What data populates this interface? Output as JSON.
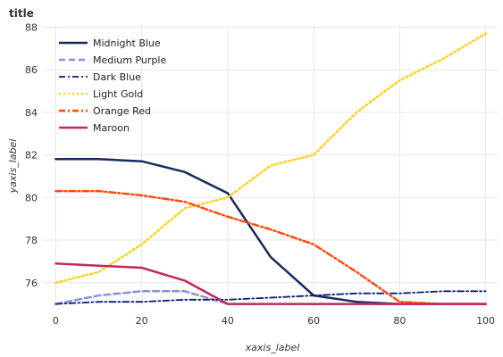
{
  "chart_data": {
    "type": "line",
    "title": "title",
    "xlabel": "xaxis_label",
    "ylabel": "yaxis_label",
    "xlim": [
      -3,
      103
    ],
    "ylim": [
      74.9,
      88.1
    ],
    "xticks": [
      0,
      20,
      40,
      60,
      80,
      100
    ],
    "yticks": [
      76,
      78,
      80,
      82,
      84,
      86,
      88
    ],
    "grid": true,
    "legend_position": "top-left",
    "series": [
      {
        "name": "Midnight Blue",
        "color": "#1a2a5e",
        "dash": "solid",
        "width": 2.5,
        "x": [
          0,
          10,
          20,
          30,
          40,
          50,
          60,
          70,
          80,
          90,
          100
        ],
        "y": [
          81.8,
          81.8,
          81.7,
          81.2,
          80.2,
          77.2,
          75.4,
          75.1,
          75.0,
          75.0,
          75.0
        ]
      },
      {
        "name": "Medium Purple",
        "color": "#8e8ed8",
        "dash": "dash",
        "width": 2.5,
        "x": [
          0,
          10,
          20,
          30,
          40,
          50,
          60,
          70,
          80,
          90,
          100
        ],
        "y": [
          75.0,
          75.4,
          75.6,
          75.6,
          75.0,
          75.0,
          75.0,
          75.0,
          75.0,
          75.0,
          75.0
        ]
      },
      {
        "name": "Dark Blue",
        "color": "#0d1c7a",
        "dash": "dashdot",
        "width": 1.8,
        "x": [
          0,
          10,
          20,
          30,
          40,
          50,
          60,
          70,
          80,
          90,
          100
        ],
        "y": [
          75.0,
          75.1,
          75.1,
          75.2,
          75.2,
          75.3,
          75.4,
          75.5,
          75.5,
          75.6,
          75.6
        ]
      },
      {
        "name": "Light Gold",
        "color": "#ffd21f",
        "dash": "dot",
        "width": 2.5,
        "x": [
          0,
          10,
          20,
          30,
          40,
          50,
          60,
          70,
          80,
          90,
          100
        ],
        "y": [
          76.0,
          76.5,
          77.8,
          79.5,
          80.0,
          81.5,
          82.0,
          84.0,
          85.5,
          86.5,
          87.7
        ]
      },
      {
        "name": "Orange Red",
        "color": "#ff4a10",
        "dash": "dashdot",
        "width": 2.5,
        "x": [
          0,
          10,
          20,
          30,
          40,
          50,
          60,
          70,
          80,
          90,
          100
        ],
        "y": [
          80.3,
          80.3,
          80.1,
          79.8,
          79.1,
          78.5,
          77.8,
          76.5,
          75.1,
          75.0,
          75.0
        ]
      },
      {
        "name": "Maroon",
        "color": "#c02a60",
        "dash": "solid",
        "width": 2.5,
        "x": [
          0,
          10,
          20,
          30,
          40,
          50,
          60,
          70,
          80,
          90,
          100
        ],
        "y": [
          76.9,
          76.8,
          76.7,
          76.1,
          75.0,
          75.0,
          75.0,
          75.0,
          75.0,
          75.0,
          75.0
        ]
      }
    ]
  }
}
